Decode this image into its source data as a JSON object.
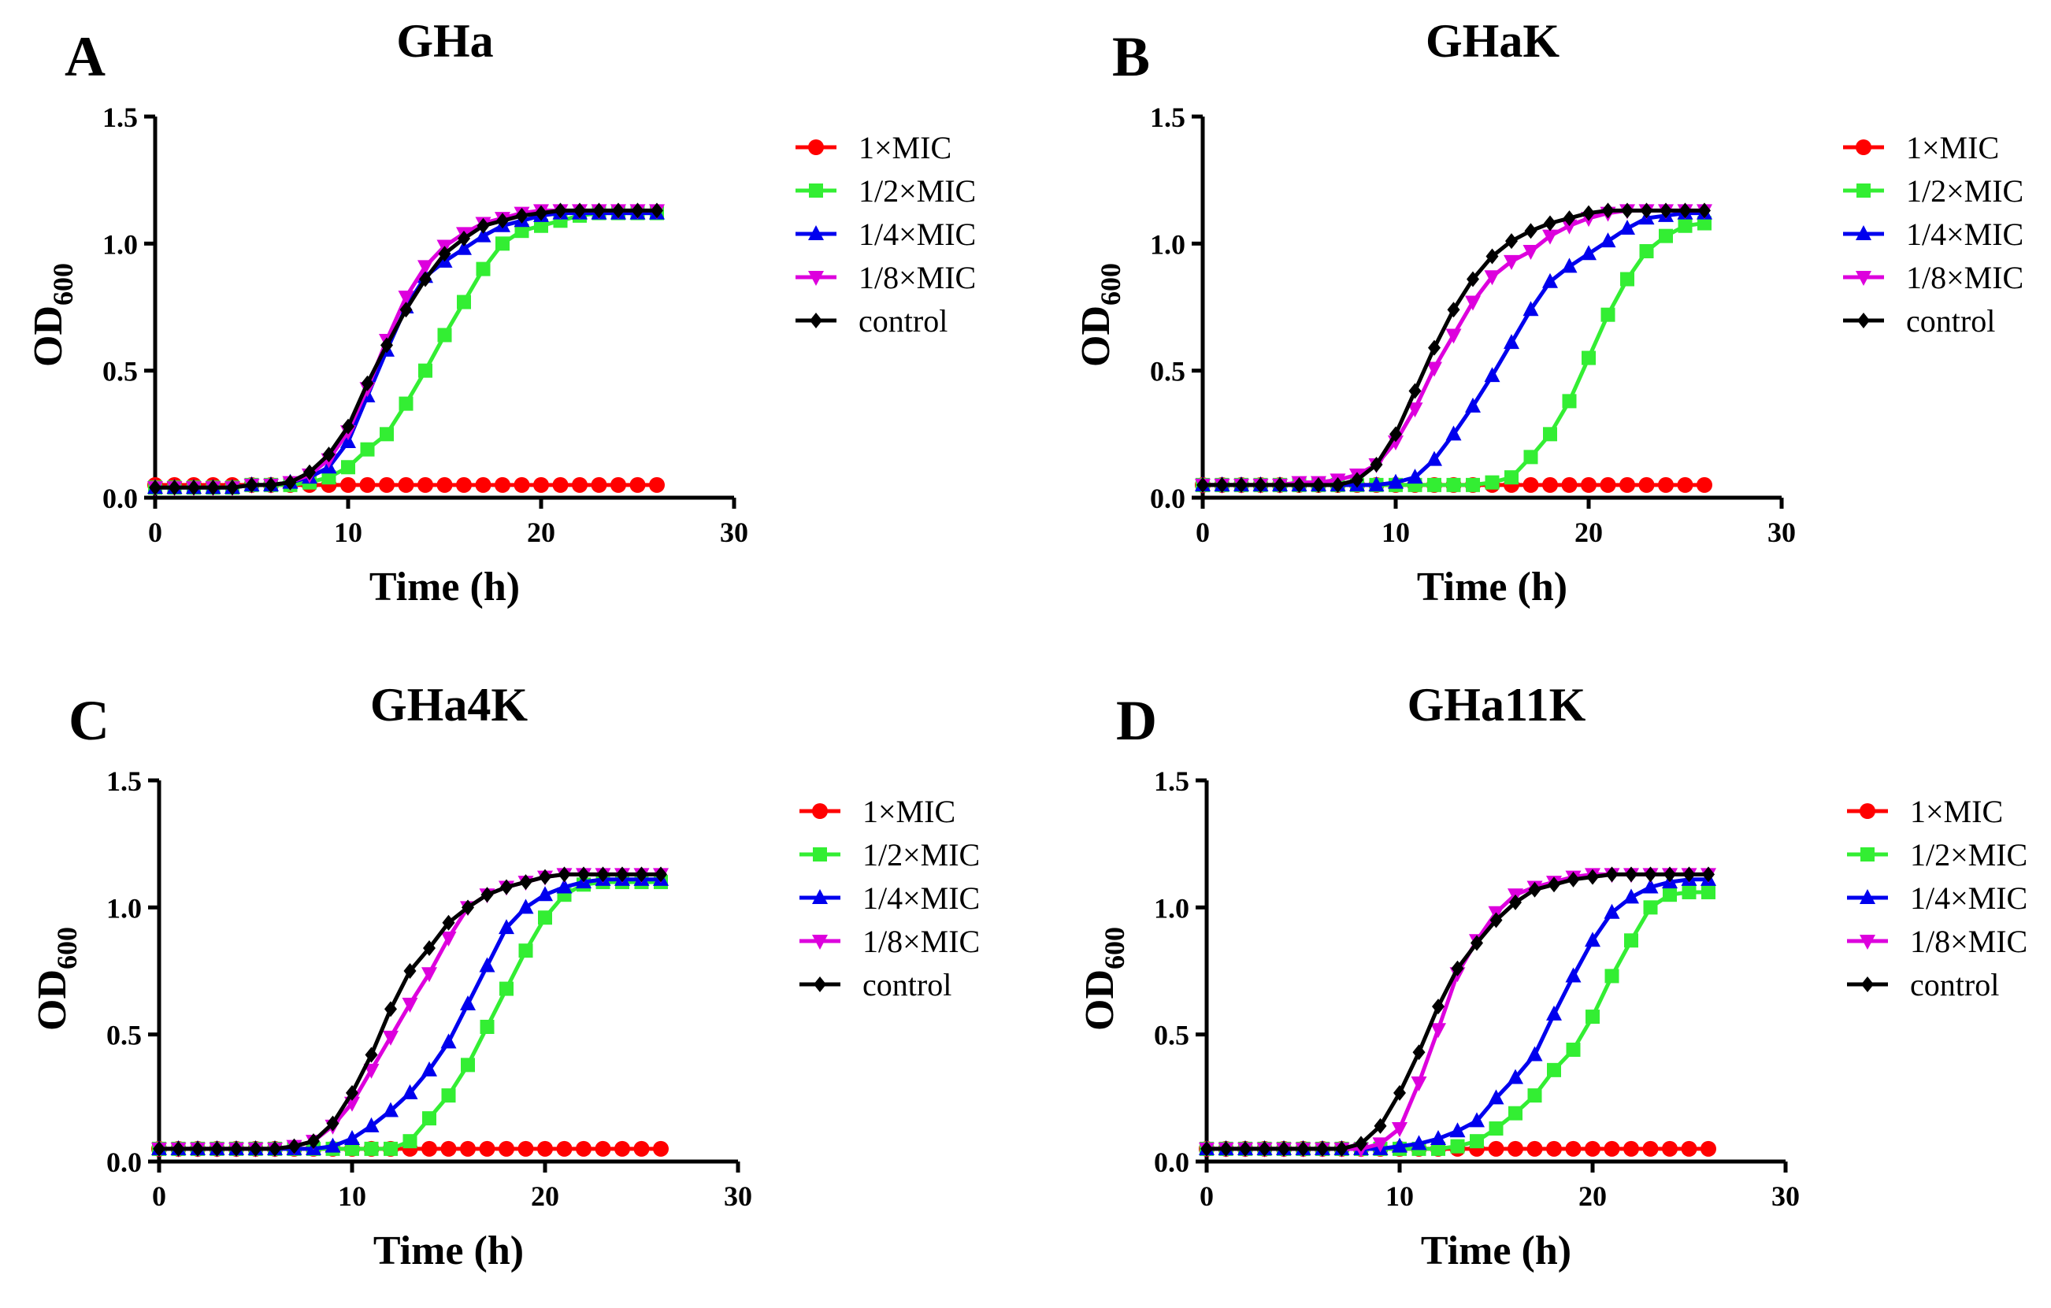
{
  "chart_data": [
    {
      "type": "line",
      "panel_label": "A",
      "title": "GHa",
      "xlabel": "Time (h)",
      "ylabel": "OD",
      "ylabel_sub": "600",
      "xlim": [
        0,
        30
      ],
      "ylim": [
        0,
        1.5
      ],
      "xticks": [
        "0",
        "10",
        "20",
        "30"
      ],
      "yticks": [
        "0.0",
        "0.5",
        "1.0",
        "1.5"
      ],
      "x": [
        0,
        1,
        2,
        3,
        4,
        5,
        6,
        7,
        8,
        9,
        10,
        11,
        12,
        13,
        14,
        15,
        16,
        17,
        18,
        19,
        20,
        21,
        22,
        23,
        24,
        25,
        26
      ],
      "series": [
        {
          "name": "1×MIC",
          "color": "#ff0000",
          "marker": "circle",
          "values": [
            0.05,
            0.05,
            0.05,
            0.05,
            0.05,
            0.05,
            0.05,
            0.05,
            0.05,
            0.05,
            0.05,
            0.05,
            0.05,
            0.05,
            0.05,
            0.05,
            0.05,
            0.05,
            0.05,
            0.05,
            0.05,
            0.05,
            0.05,
            0.05,
            0.05,
            0.05,
            0.05
          ]
        },
        {
          "name": "1/2×MIC",
          "color": "#33ee33",
          "marker": "square",
          "values": [
            0.04,
            0.04,
            0.04,
            0.04,
            0.04,
            0.05,
            0.05,
            0.05,
            0.06,
            0.08,
            0.12,
            0.19,
            0.25,
            0.37,
            0.5,
            0.64,
            0.77,
            0.9,
            1.0,
            1.05,
            1.07,
            1.09,
            1.11,
            1.12,
            1.12,
            1.12,
            1.12
          ]
        },
        {
          "name": "1/4×MIC",
          "color": "#0000ee",
          "marker": "triangle",
          "values": [
            0.04,
            0.04,
            0.04,
            0.04,
            0.04,
            0.05,
            0.05,
            0.06,
            0.08,
            0.12,
            0.22,
            0.4,
            0.58,
            0.75,
            0.87,
            0.93,
            0.98,
            1.03,
            1.07,
            1.09,
            1.11,
            1.12,
            1.12,
            1.12,
            1.12,
            1.12,
            1.12
          ]
        },
        {
          "name": "1/8×MIC",
          "color": "#dd00dd",
          "marker": "triangle-down",
          "values": [
            0.04,
            0.04,
            0.04,
            0.04,
            0.04,
            0.05,
            0.05,
            0.06,
            0.09,
            0.15,
            0.26,
            0.43,
            0.62,
            0.79,
            0.91,
            0.99,
            1.04,
            1.08,
            1.1,
            1.12,
            1.13,
            1.13,
            1.13,
            1.13,
            1.13,
            1.13,
            1.13
          ]
        },
        {
          "name": "control",
          "color": "#000000",
          "marker": "diamond",
          "values": [
            0.04,
            0.04,
            0.04,
            0.04,
            0.04,
            0.05,
            0.05,
            0.06,
            0.1,
            0.17,
            0.28,
            0.45,
            0.6,
            0.74,
            0.86,
            0.96,
            1.02,
            1.07,
            1.09,
            1.11,
            1.12,
            1.13,
            1.13,
            1.13,
            1.13,
            1.13,
            1.13
          ]
        }
      ]
    },
    {
      "type": "line",
      "panel_label": "B",
      "title": "GHaK",
      "xlabel": "Time (h)",
      "ylabel": "OD",
      "ylabel_sub": "600",
      "xlim": [
        0,
        30
      ],
      "ylim": [
        0,
        1.5
      ],
      "xticks": [
        "0",
        "10",
        "20",
        "30"
      ],
      "yticks": [
        "0.0",
        "0.5",
        "1.0",
        "1.5"
      ],
      "x": [
        0,
        1,
        2,
        3,
        4,
        5,
        6,
        7,
        8,
        9,
        10,
        11,
        12,
        13,
        14,
        15,
        16,
        17,
        18,
        19,
        20,
        21,
        22,
        23,
        24,
        25,
        26
      ],
      "series": [
        {
          "name": "1×MIC",
          "color": "#ff0000",
          "marker": "circle",
          "values": [
            0.05,
            0.05,
            0.05,
            0.05,
            0.05,
            0.05,
            0.05,
            0.05,
            0.05,
            0.05,
            0.05,
            0.05,
            0.05,
            0.05,
            0.05,
            0.05,
            0.05,
            0.05,
            0.05,
            0.05,
            0.05,
            0.05,
            0.05,
            0.05,
            0.05,
            0.05,
            0.05
          ]
        },
        {
          "name": "1/2×MIC",
          "color": "#33ee33",
          "marker": "square",
          "values": [
            0.05,
            0.05,
            0.05,
            0.05,
            0.05,
            0.05,
            0.05,
            0.05,
            0.05,
            0.05,
            0.05,
            0.05,
            0.05,
            0.05,
            0.05,
            0.06,
            0.08,
            0.16,
            0.25,
            0.38,
            0.55,
            0.72,
            0.86,
            0.97,
            1.03,
            1.07,
            1.08
          ]
        },
        {
          "name": "1/4×MIC",
          "color": "#0000ee",
          "marker": "triangle",
          "values": [
            0.05,
            0.05,
            0.05,
            0.05,
            0.05,
            0.05,
            0.05,
            0.05,
            0.05,
            0.05,
            0.06,
            0.08,
            0.15,
            0.25,
            0.36,
            0.48,
            0.61,
            0.74,
            0.85,
            0.91,
            0.96,
            1.01,
            1.06,
            1.1,
            1.11,
            1.12,
            1.12
          ]
        },
        {
          "name": "1/8×MIC",
          "color": "#dd00dd",
          "marker": "triangle-down",
          "values": [
            0.05,
            0.05,
            0.05,
            0.05,
            0.05,
            0.06,
            0.06,
            0.07,
            0.09,
            0.13,
            0.22,
            0.35,
            0.51,
            0.64,
            0.77,
            0.87,
            0.93,
            0.97,
            1.03,
            1.07,
            1.1,
            1.12,
            1.13,
            1.13,
            1.13,
            1.13,
            1.13
          ]
        },
        {
          "name": "control",
          "color": "#000000",
          "marker": "diamond",
          "values": [
            0.05,
            0.05,
            0.05,
            0.05,
            0.05,
            0.05,
            0.05,
            0.05,
            0.07,
            0.13,
            0.25,
            0.42,
            0.59,
            0.74,
            0.86,
            0.95,
            1.01,
            1.05,
            1.08,
            1.1,
            1.12,
            1.13,
            1.13,
            1.13,
            1.13,
            1.13,
            1.13
          ]
        }
      ]
    },
    {
      "type": "line",
      "panel_label": "C",
      "title": "GHa4K",
      "xlabel": "Time (h)",
      "ylabel": "OD",
      "ylabel_sub": "600",
      "xlim": [
        0,
        30
      ],
      "ylim": [
        0,
        1.5
      ],
      "xticks": [
        "0",
        "10",
        "20",
        "30"
      ],
      "yticks": [
        "0.0",
        "0.5",
        "1.0",
        "1.5"
      ],
      "x": [
        0,
        1,
        2,
        3,
        4,
        5,
        6,
        7,
        8,
        9,
        10,
        11,
        12,
        13,
        14,
        15,
        16,
        17,
        18,
        19,
        20,
        21,
        22,
        23,
        24,
        25,
        26
      ],
      "series": [
        {
          "name": "1×MIC",
          "color": "#ff0000",
          "marker": "circle",
          "values": [
            0.05,
            0.05,
            0.05,
            0.05,
            0.05,
            0.05,
            0.05,
            0.05,
            0.05,
            0.05,
            0.05,
            0.05,
            0.05,
            0.05,
            0.05,
            0.05,
            0.05,
            0.05,
            0.05,
            0.05,
            0.05,
            0.05,
            0.05,
            0.05,
            0.05,
            0.05,
            0.05
          ]
        },
        {
          "name": "1/2×MIC",
          "color": "#33ee33",
          "marker": "square",
          "values": [
            0.05,
            0.05,
            0.05,
            0.05,
            0.05,
            0.05,
            0.05,
            0.05,
            0.05,
            0.05,
            0.05,
            0.05,
            0.05,
            0.08,
            0.17,
            0.26,
            0.38,
            0.53,
            0.68,
            0.83,
            0.96,
            1.05,
            1.09,
            1.1,
            1.1,
            1.1,
            1.1
          ]
        },
        {
          "name": "1/4×MIC",
          "color": "#0000ee",
          "marker": "triangle",
          "values": [
            0.05,
            0.05,
            0.05,
            0.05,
            0.05,
            0.05,
            0.05,
            0.05,
            0.05,
            0.06,
            0.09,
            0.14,
            0.2,
            0.27,
            0.36,
            0.47,
            0.62,
            0.77,
            0.92,
            1.0,
            1.05,
            1.08,
            1.1,
            1.11,
            1.11,
            1.11,
            1.11
          ]
        },
        {
          "name": "1/8×MIC",
          "color": "#dd00dd",
          "marker": "triangle-down",
          "values": [
            0.05,
            0.05,
            0.05,
            0.05,
            0.05,
            0.05,
            0.05,
            0.06,
            0.08,
            0.14,
            0.23,
            0.36,
            0.49,
            0.62,
            0.74,
            0.88,
            1.0,
            1.05,
            1.08,
            1.1,
            1.12,
            1.13,
            1.13,
            1.13,
            1.13,
            1.13,
            1.13
          ]
        },
        {
          "name": "control",
          "color": "#000000",
          "marker": "diamond",
          "values": [
            0.05,
            0.05,
            0.05,
            0.05,
            0.05,
            0.05,
            0.05,
            0.06,
            0.08,
            0.15,
            0.27,
            0.42,
            0.6,
            0.75,
            0.84,
            0.94,
            1.0,
            1.05,
            1.08,
            1.1,
            1.12,
            1.13,
            1.13,
            1.13,
            1.13,
            1.13,
            1.13
          ]
        }
      ]
    },
    {
      "type": "line",
      "panel_label": "D",
      "title": "GHa11K",
      "xlabel": "Time (h)",
      "ylabel": "OD",
      "ylabel_sub": "600",
      "xlim": [
        0,
        30
      ],
      "ylim": [
        0,
        1.5
      ],
      "xticks": [
        "0",
        "10",
        "20",
        "30"
      ],
      "yticks": [
        "0.0",
        "0.5",
        "1.0",
        "1.5"
      ],
      "x": [
        0,
        1,
        2,
        3,
        4,
        5,
        6,
        7,
        8,
        9,
        10,
        11,
        12,
        13,
        14,
        15,
        16,
        17,
        18,
        19,
        20,
        21,
        22,
        23,
        24,
        25,
        26
      ],
      "series": [
        {
          "name": "1×MIC",
          "color": "#ff0000",
          "marker": "circle",
          "values": [
            0.05,
            0.05,
            0.05,
            0.05,
            0.05,
            0.05,
            0.05,
            0.05,
            0.05,
            0.05,
            0.05,
            0.05,
            0.05,
            0.05,
            0.05,
            0.05,
            0.05,
            0.05,
            0.05,
            0.05,
            0.05,
            0.05,
            0.05,
            0.05,
            0.05,
            0.05,
            0.05
          ]
        },
        {
          "name": "1/2×MIC",
          "color": "#33ee33",
          "marker": "square",
          "values": [
            0.05,
            0.05,
            0.05,
            0.05,
            0.05,
            0.05,
            0.05,
            0.05,
            0.05,
            0.05,
            0.05,
            0.05,
            0.05,
            0.06,
            0.08,
            0.13,
            0.19,
            0.26,
            0.36,
            0.44,
            0.57,
            0.73,
            0.87,
            1.0,
            1.05,
            1.06,
            1.06
          ]
        },
        {
          "name": "1/4×MIC",
          "color": "#0000ee",
          "marker": "triangle",
          "values": [
            0.05,
            0.05,
            0.05,
            0.05,
            0.05,
            0.05,
            0.05,
            0.05,
            0.05,
            0.05,
            0.06,
            0.07,
            0.09,
            0.12,
            0.16,
            0.25,
            0.33,
            0.42,
            0.58,
            0.73,
            0.87,
            0.98,
            1.04,
            1.08,
            1.1,
            1.11,
            1.11
          ]
        },
        {
          "name": "1/8×MIC",
          "color": "#dd00dd",
          "marker": "triangle-down",
          "values": [
            0.05,
            0.05,
            0.05,
            0.05,
            0.05,
            0.05,
            0.05,
            0.05,
            0.05,
            0.07,
            0.13,
            0.31,
            0.52,
            0.74,
            0.87,
            0.98,
            1.05,
            1.08,
            1.1,
            1.12,
            1.13,
            1.13,
            1.13,
            1.13,
            1.13,
            1.13,
            1.13
          ]
        },
        {
          "name": "control",
          "color": "#000000",
          "marker": "diamond",
          "values": [
            0.05,
            0.05,
            0.05,
            0.05,
            0.05,
            0.05,
            0.05,
            0.05,
            0.07,
            0.14,
            0.27,
            0.43,
            0.61,
            0.76,
            0.86,
            0.95,
            1.02,
            1.07,
            1.09,
            1.11,
            1.12,
            1.13,
            1.13,
            1.13,
            1.13,
            1.13,
            1.13
          ]
        }
      ]
    }
  ]
}
